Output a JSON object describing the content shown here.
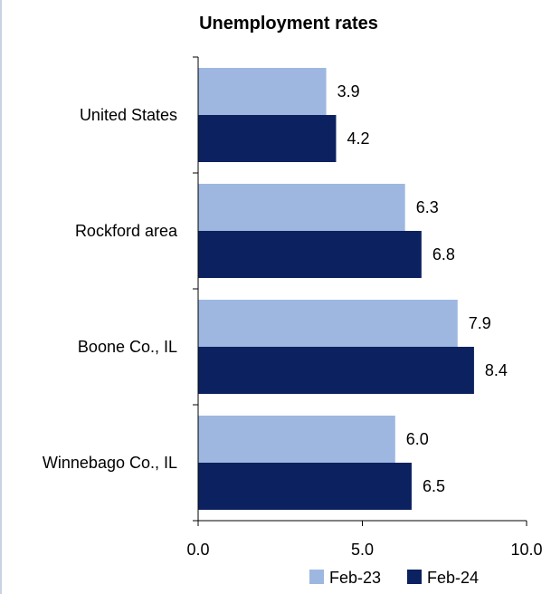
{
  "chart_data": {
    "type": "bar",
    "orientation": "horizontal",
    "title": "Unemployment rates",
    "categories": [
      "United States",
      "Rockford area",
      "Boone Co., IL",
      "Winnebago Co., IL"
    ],
    "series": [
      {
        "name": "Feb-23",
        "values": [
          3.9,
          6.3,
          7.9,
          6.0
        ],
        "color": "#9db7e1",
        "labels": [
          "3.9",
          "6.3",
          "7.9",
          "6.0"
        ]
      },
      {
        "name": "Feb-24",
        "values": [
          4.2,
          6.8,
          8.4,
          6.5
        ],
        "color": "#0b2160",
        "labels": [
          "4.2",
          "6.8",
          "8.4",
          "6.5"
        ]
      }
    ],
    "xlim": [
      0,
      10
    ],
    "xticks": [
      0,
      5,
      10
    ],
    "xtick_labels": [
      "0.0",
      "5.0",
      "10.0"
    ],
    "grid": false,
    "legend_position": "bottom-right"
  }
}
